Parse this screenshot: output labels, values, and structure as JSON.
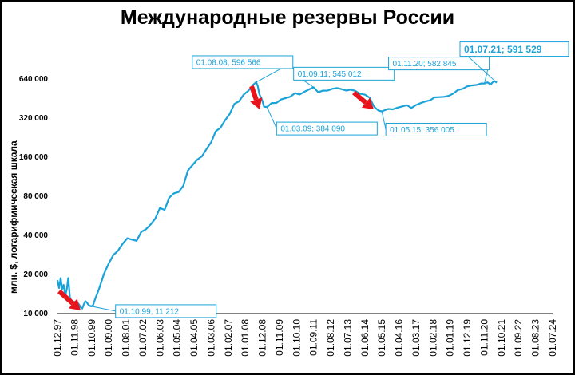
{
  "chart_data": {
    "type": "line",
    "title": "Международные резервы России",
    "ylabel": "млн. $, логарифмическая шкала",
    "xlabel": "",
    "yscale": "log",
    "grid": false,
    "legend": "none",
    "line_color": "#1aa3d9",
    "arrow_color": "#e8141c",
    "ylim": [
      10000,
      800000
    ],
    "yticks": [
      10000,
      20000,
      40000,
      80000,
      160000,
      320000,
      640000
    ],
    "ytick_labels": [
      "10 000",
      "20 000",
      "40 000",
      "80 000",
      "160 000",
      "320 000",
      "640 000"
    ],
    "xlim": [
      "1997-12-01",
      "2024-07-01"
    ],
    "xtick_labels": [
      "01.12.97",
      "01.11.98",
      "01.10.99",
      "01.09.00",
      "01.08.01",
      "01.07.02",
      "01.06.03",
      "01.05.04",
      "01.04.05",
      "01.03.06",
      "01.02.07",
      "01.01.08",
      "01.12.08",
      "01.11.09",
      "01.10.10",
      "01.09.11",
      "01.08.12",
      "01.07.13",
      "01.06.14",
      "01.05.15",
      "01.04.16",
      "01.03.17",
      "01.02.18",
      "01.01.19",
      "01.12.19",
      "01.11.20",
      "01.10.21",
      "01.09.22",
      "01.08.23",
      "01.07.24"
    ],
    "series": [
      {
        "points": [
          [
            "1997-12-01",
            17800
          ],
          [
            "1998-01-01",
            15500
          ],
          [
            "1998-02-01",
            18500
          ],
          [
            "1998-03-01",
            15200
          ],
          [
            "1998-04-01",
            16400
          ],
          [
            "1998-05-01",
            13500
          ],
          [
            "1998-06-01",
            15100
          ],
          [
            "1998-07-01",
            18500
          ],
          [
            "1998-08-01",
            13200
          ],
          [
            "1998-09-01",
            12300
          ],
          [
            "1998-10-01",
            12200
          ],
          [
            "1998-11-01",
            12100
          ],
          [
            "1998-12-01",
            12200
          ],
          [
            "1999-01-01",
            11900
          ],
          [
            "1999-02-01",
            11500
          ],
          [
            "1999-03-01",
            11000
          ],
          [
            "1999-04-01",
            10800
          ],
          [
            "1999-05-01",
            11600
          ],
          [
            "1999-06-01",
            12300
          ],
          [
            "1999-07-01",
            12000
          ],
          [
            "1999-08-01",
            11500
          ],
          [
            "1999-09-01",
            11300
          ],
          [
            "1999-10-01",
            11212
          ],
          [
            "1999-11-01",
            11500
          ],
          [
            "1999-12-01",
            12500
          ],
          [
            "2000-03-01",
            15500
          ],
          [
            "2000-06-01",
            20000
          ],
          [
            "2000-09-01",
            24000
          ],
          [
            "2000-12-01",
            27900
          ],
          [
            "2001-03-01",
            30000
          ],
          [
            "2001-06-01",
            34000
          ],
          [
            "2001-09-01",
            37500
          ],
          [
            "2001-12-01",
            36600
          ],
          [
            "2002-03-01",
            35800
          ],
          [
            "2002-06-01",
            42000
          ],
          [
            "2002-09-01",
            44000
          ],
          [
            "2002-12-01",
            47800
          ],
          [
            "2003-03-01",
            53000
          ],
          [
            "2003-06-01",
            64000
          ],
          [
            "2003-09-01",
            62000
          ],
          [
            "2003-12-01",
            76900
          ],
          [
            "2004-03-01",
            83000
          ],
          [
            "2004-06-01",
            85000
          ],
          [
            "2004-09-01",
            95000
          ],
          [
            "2004-12-01",
            124500
          ],
          [
            "2005-03-01",
            137000
          ],
          [
            "2005-06-01",
            151000
          ],
          [
            "2005-09-01",
            160000
          ],
          [
            "2005-12-01",
            182200
          ],
          [
            "2006-03-01",
            205000
          ],
          [
            "2006-06-01",
            250000
          ],
          [
            "2006-09-01",
            266000
          ],
          [
            "2006-12-01",
            303700
          ],
          [
            "2007-03-01",
            339000
          ],
          [
            "2007-06-01",
            406000
          ],
          [
            "2007-09-01",
            425000
          ],
          [
            "2007-12-01",
            478800
          ],
          [
            "2008-03-01",
            512000
          ],
          [
            "2008-06-01",
            569000
          ],
          [
            "2008-08-01",
            596566
          ],
          [
            "2008-09-01",
            556000
          ],
          [
            "2008-10-01",
            484000
          ],
          [
            "2008-11-01",
            455000
          ],
          [
            "2008-12-01",
            427100
          ],
          [
            "2009-01-01",
            386500
          ],
          [
            "2009-03-01",
            384090
          ],
          [
            "2009-06-01",
            412000
          ],
          [
            "2009-09-01",
            413000
          ],
          [
            "2009-12-01",
            439500
          ],
          [
            "2010-03-01",
            450000
          ],
          [
            "2010-06-01",
            461000
          ],
          [
            "2010-09-01",
            491000
          ],
          [
            "2010-12-01",
            479400
          ],
          [
            "2011-03-01",
            502000
          ],
          [
            "2011-06-01",
            524000
          ],
          [
            "2011-09-01",
            545012
          ],
          [
            "2011-12-01",
            498600
          ],
          [
            "2012-03-01",
            513000
          ],
          [
            "2012-06-01",
            514000
          ],
          [
            "2012-09-01",
            530000
          ],
          [
            "2012-12-01",
            537600
          ],
          [
            "2013-03-01",
            527000
          ],
          [
            "2013-06-01",
            514000
          ],
          [
            "2013-09-01",
            523000
          ],
          [
            "2013-12-01",
            509600
          ],
          [
            "2014-03-01",
            486000
          ],
          [
            "2014-06-01",
            478000
          ],
          [
            "2014-09-01",
            454000
          ],
          [
            "2014-12-01",
            385500
          ],
          [
            "2015-03-01",
            360000
          ],
          [
            "2015-05-01",
            356005
          ],
          [
            "2015-09-01",
            371000
          ],
          [
            "2015-12-01",
            368400
          ],
          [
            "2016-03-01",
            380000
          ],
          [
            "2016-06-01",
            388000
          ],
          [
            "2016-09-01",
            397000
          ],
          [
            "2016-12-01",
            377700
          ],
          [
            "2017-03-01",
            398000
          ],
          [
            "2017-06-01",
            412000
          ],
          [
            "2017-09-01",
            424000
          ],
          [
            "2017-12-01",
            432700
          ],
          [
            "2018-03-01",
            456000
          ],
          [
            "2018-06-01",
            458000
          ],
          [
            "2018-09-01",
            460000
          ],
          [
            "2018-12-01",
            468500
          ],
          [
            "2019-03-01",
            487000
          ],
          [
            "2019-06-01",
            519000
          ],
          [
            "2019-09-01",
            530000
          ],
          [
            "2019-12-01",
            554400
          ],
          [
            "2020-03-01",
            563000
          ],
          [
            "2020-06-01",
            568000
          ],
          [
            "2020-09-01",
            583000
          ],
          [
            "2020-11-01",
            582845
          ],
          [
            "2021-01-01",
            595000
          ],
          [
            "2021-03-01",
            573000
          ],
          [
            "2021-05-01",
            605000
          ],
          [
            "2021-06-01",
            605000
          ],
          [
            "2021-07-01",
            591529
          ]
        ]
      }
    ],
    "annotations": [
      {
        "text": "01.10.99; 11 212",
        "x": "1999-10-01",
        "y": 11212
      },
      {
        "text": "01.08.08; 596 566",
        "x": "2008-08-01",
        "y": 596566
      },
      {
        "text": "01.03.09; 384 090",
        "x": "2009-03-01",
        "y": 384090
      },
      {
        "text": "01.09.11; 545 012",
        "x": "2011-09-01",
        "y": 545012
      },
      {
        "text": "01.05.15; 356 005",
        "x": "2015-05-01",
        "y": 356005
      },
      {
        "text": "01.11.20; 582 845",
        "x": "2020-11-01",
        "y": 582845
      },
      {
        "text": "01.07.21; 591 529",
        "x": "2021-07-01",
        "y": 591529
      }
    ]
  }
}
